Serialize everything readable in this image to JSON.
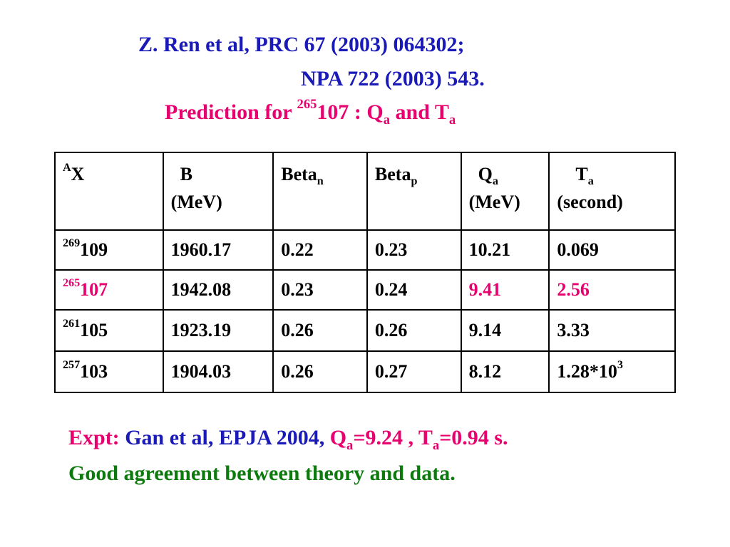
{
  "header": {
    "ref1": "Z. Ren et al,  PRC 67 (2003) 064302;",
    "ref2": "NPA 722 (2003) 543.",
    "prediction_prefix": "Prediction for ",
    "prediction_mass": "265",
    "prediction_element": "107 : Q",
    "prediction_q_sub": "a",
    "prediction_and": " and T",
    "prediction_t_sub": "a"
  },
  "table": {
    "headers": {
      "ax_sup": "A",
      "ax": "X",
      "b": "B",
      "b_unit": "(MeV)",
      "betan": "Beta",
      "betan_sub": "n",
      "betap": "Beta",
      "betap_sub": "p",
      "q": "Q",
      "q_sub": "a",
      "q_unit": "(MeV)",
      "t": "T",
      "t_sub": "a",
      "t_unit": "(second)"
    },
    "rows": [
      {
        "mass": "269",
        "z": "109",
        "b": "1960.17",
        "betan": "0.22",
        "betap": "0.23",
        "q": "10.21",
        "t": "0.069",
        "t_sup": ""
      },
      {
        "mass": "265",
        "z": "107",
        "b": "1942.08",
        "betan": "0.23",
        "betap": "0.24",
        "q": "9.41",
        "t": "2.56",
        "t_sup": ""
      },
      {
        "mass": "261",
        "z": "105",
        "b": "1923.19",
        "betan": "0.26",
        "betap": "0.26",
        "q": "9.14",
        "t": "3.33",
        "t_sup": ""
      },
      {
        "mass": "257",
        "z": "103",
        "b": "1904.03",
        "betan": "0.26",
        "betap": "0.27",
        "q": "8.12",
        "t": "1.28*10",
        "t_sup": "3"
      }
    ],
    "highlight_row": 1
  },
  "footer": {
    "expt_label": "Expt: ",
    "expt_ref": "Gan et al, EPJA 2004, ",
    "expt_q": "Q",
    "expt_q_sub": "a",
    "expt_q_val": "=9.24 , T",
    "expt_t_sub": "a",
    "expt_t_val": "=0.94 s.",
    "conclusion": "Good agreement between theory and data."
  },
  "colors": {
    "blue": "#1a1ab8",
    "magenta": "#e8006f",
    "green": "#0d7a0d"
  }
}
